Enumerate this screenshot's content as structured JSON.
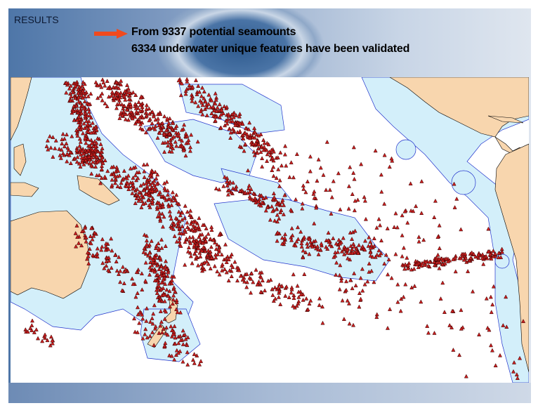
{
  "slide": {
    "title": "RESULTS",
    "bullet_icon": "red-arrow-icon",
    "lines": [
      "From 9337 potential seamounts",
      "6334 underwater unique features have been validated"
    ]
  },
  "map": {
    "colors": {
      "land": "#f8d6ae",
      "eez": "#d3effa",
      "eez_border": "#2233cc",
      "seamount": "#c81e1e",
      "ocean": "#ffffff"
    },
    "marker_icon": "triangle-seamount-icon"
  }
}
